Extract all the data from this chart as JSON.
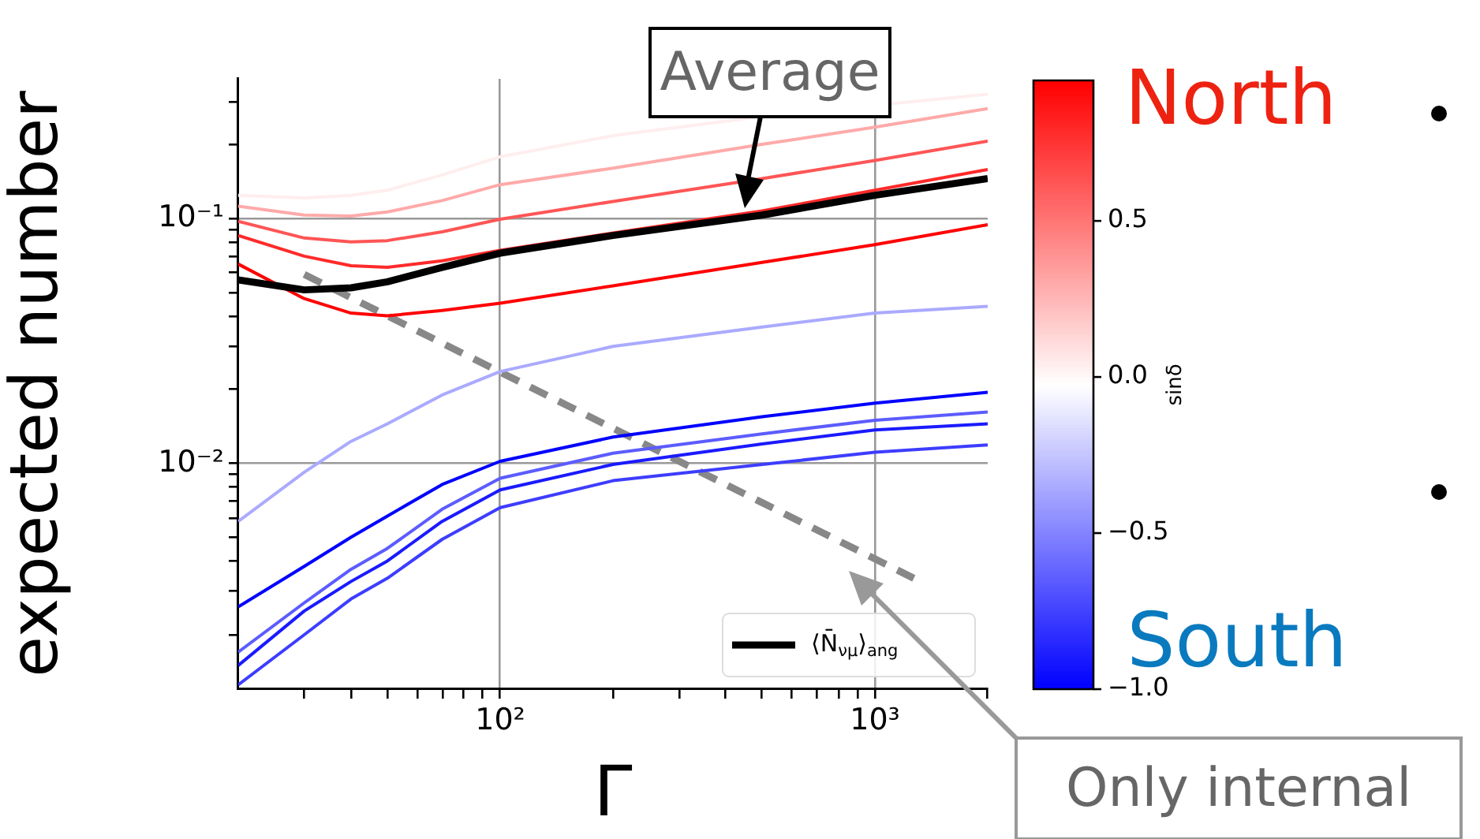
{
  "chart_data": {
    "type": "line",
    "xlabel": "Γ",
    "ylabel": "expected number",
    "clabel": "sinδ",
    "x": [
      20,
      30,
      40,
      50,
      70,
      100,
      200,
      500,
      1000,
      2000
    ],
    "series": [
      {
        "color": "#ffeeee",
        "values": [
          0.124,
          0.121,
          0.124,
          0.13,
          0.15,
          0.178,
          0.217,
          0.26,
          null,
          0.32
        ]
      },
      {
        "color": "#ffaaaa",
        "values": [
          0.112,
          0.103,
          0.102,
          0.106,
          0.118,
          0.137,
          0.16,
          0.2,
          0.235,
          0.28
        ]
      },
      {
        "color": "#ff5555",
        "values": [
          0.097,
          0.083,
          0.08,
          0.081,
          0.088,
          0.099,
          0.117,
          0.145,
          0.172,
          0.206
        ]
      },
      {
        "color": "#ff2a2a",
        "values": [
          0.085,
          0.07,
          0.064,
          0.063,
          0.067,
          0.074,
          0.087,
          0.107,
          0.13,
          0.158
        ]
      },
      {
        "color": "#ff0000",
        "values": [
          0.065,
          0.047,
          0.041,
          0.04,
          0.042,
          0.045,
          0.053,
          0.066,
          0.078,
          0.094
        ]
      },
      {
        "color": "#aaaaff",
        "values": [
          0.0058,
          0.0092,
          0.0123,
          0.0145,
          0.019,
          0.0237,
          0.03,
          0.036,
          0.041,
          0.0437
        ]
      },
      {
        "color": "#0000ff",
        "values": [
          0.0026,
          0.0038,
          0.005,
          0.0061,
          0.0082,
          0.0102,
          0.0128,
          0.0155,
          0.0176,
          0.0195
        ]
      },
      {
        "color": "#5c5cff",
        "values": [
          0.0017,
          0.0027,
          0.0037,
          0.0045,
          0.0065,
          0.0087,
          0.011,
          0.0132,
          0.015,
          0.0162
        ]
      },
      {
        "color": "#1a1aff",
        "values": [
          0.0015,
          0.0025,
          0.0033,
          0.004,
          0.0058,
          0.0078,
          0.0099,
          0.012,
          0.0137,
          0.0145
        ]
      },
      {
        "color": "#3d3dff",
        "values": [
          0.00125,
          0.002,
          0.0028,
          0.0034,
          0.0049,
          0.0066,
          0.0085,
          0.0099,
          0.0111,
          0.0119
        ]
      },
      {
        "name": "⟨N̄$_{νμ}$⟩$_{ang}$",
        "color": "#000000",
        "values": [
          0.056,
          0.051,
          0.052,
          0.055,
          0.063,
          0.072,
          0.085,
          0.103,
          0.124,
          0.145
        ]
      },
      {
        "color": "#888888",
        "line_style": "dashed",
        "x": [
          30,
          1270
        ],
        "values": [
          0.059,
          0.0034
        ]
      }
    ],
    "log": "xy",
    "grid": true,
    "legend": "bottom right",
    "marker": "none",
    "xlim": [
      20,
      2000
    ],
    "ylim": [
      0.0012,
      0.37
    ],
    "xticks": [
      {
        "value": 30,
        "label": null
      },
      {
        "value": 40,
        "label": null
      },
      {
        "value": 50,
        "label": null
      },
      {
        "value": 60,
        "label": null
      },
      {
        "value": 70,
        "label": null
      },
      {
        "value": 80,
        "label": null
      },
      {
        "value": 90,
        "label": null
      },
      {
        "value": 100,
        "label": "10²"
      },
      {
        "value": 200,
        "label": null
      },
      {
        "value": 300,
        "label": null
      },
      {
        "value": 400,
        "label": null
      },
      {
        "value": 500,
        "label": null
      },
      {
        "value": 600,
        "label": null
      },
      {
        "value": 700,
        "label": null
      },
      {
        "value": 800,
        "label": null
      },
      {
        "value": 900,
        "label": null
      },
      {
        "value": 1000,
        "label": "10³"
      },
      {
        "value": 2000,
        "label": null
      }
    ],
    "yticks": [
      {
        "value": 0.002,
        "label": null
      },
      {
        "value": 0.003,
        "label": null
      },
      {
        "value": 0.004,
        "label": null
      },
      {
        "value": 0.005,
        "label": null
      },
      {
        "value": 0.006,
        "label": null
      },
      {
        "value": 0.007,
        "label": null
      },
      {
        "value": 0.008,
        "label": null
      },
      {
        "value": 0.009,
        "label": null
      },
      {
        "value": 0.01,
        "label": "10⁻²"
      },
      {
        "value": 0.02,
        "label": null
      },
      {
        "value": 0.03,
        "label": null
      },
      {
        "value": 0.04,
        "label": null
      },
      {
        "value": 0.05,
        "label": null
      },
      {
        "value": 0.06,
        "label": null
      },
      {
        "value": 0.07,
        "label": null
      },
      {
        "value": 0.08,
        "label": null
      },
      {
        "value": 0.09,
        "label": null
      },
      {
        "value": 0.1,
        "label": "10⁻¹"
      },
      {
        "value": 0.2,
        "label": null
      },
      {
        "value": 0.3,
        "label": null
      }
    ],
    "clim": [
      -1,
      0.95
    ],
    "cticks": [
      {
        "value": -1,
        "label": "−1.0"
      },
      {
        "value": -0.5,
        "label": "−0.5"
      },
      {
        "value": 0,
        "label": "0.0"
      },
      {
        "value": 0.5,
        "label": "0.5"
      }
    ],
    "annotations": [
      "Average",
      "Only internal",
      "North",
      "South"
    ]
  }
}
